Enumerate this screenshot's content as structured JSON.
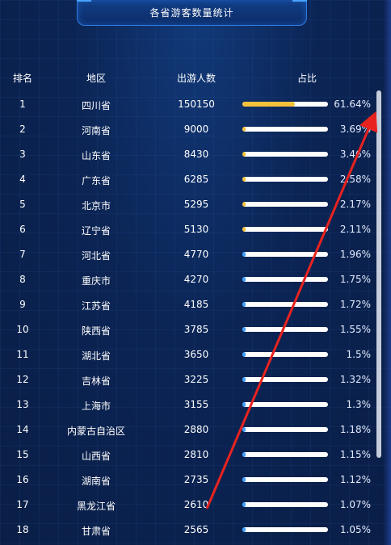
{
  "title": "各省游客数量统计",
  "columns": {
    "rank": "排名",
    "region": "地区",
    "count": "出游人数",
    "share": "占比"
  },
  "colors": {
    "high": "#f6c13a",
    "normal": "#3fa0ff",
    "track": "#ffffff",
    "arrow": "#e8231f"
  },
  "rows": [
    {
      "rank": "1",
      "region": "四川省",
      "count": "150150",
      "pct": "61.64%",
      "ratio": 0.6164,
      "level": "high"
    },
    {
      "rank": "2",
      "region": "河南省",
      "count": "9000",
      "pct": "3.69%",
      "ratio": 0.0369,
      "level": "high"
    },
    {
      "rank": "3",
      "region": "山东省",
      "count": "8430",
      "pct": "3.46%",
      "ratio": 0.0346,
      "level": "high"
    },
    {
      "rank": "4",
      "region": "广东省",
      "count": "6285",
      "pct": "2.58%",
      "ratio": 0.0258,
      "level": "high"
    },
    {
      "rank": "5",
      "region": "北京市",
      "count": "5295",
      "pct": "2.17%",
      "ratio": 0.0217,
      "level": "high"
    },
    {
      "rank": "6",
      "region": "辽宁省",
      "count": "5130",
      "pct": "2.11%",
      "ratio": 0.0211,
      "level": "high"
    },
    {
      "rank": "7",
      "region": "河北省",
      "count": "4770",
      "pct": "1.96%",
      "ratio": 0.0196,
      "level": "normal"
    },
    {
      "rank": "8",
      "region": "重庆市",
      "count": "4270",
      "pct": "1.75%",
      "ratio": 0.0175,
      "level": "normal"
    },
    {
      "rank": "9",
      "region": "江苏省",
      "count": "4185",
      "pct": "1.72%",
      "ratio": 0.0172,
      "level": "normal"
    },
    {
      "rank": "10",
      "region": "陕西省",
      "count": "3785",
      "pct": "1.55%",
      "ratio": 0.0155,
      "level": "normal"
    },
    {
      "rank": "11",
      "region": "湖北省",
      "count": "3650",
      "pct": "1.5%",
      "ratio": 0.015,
      "level": "normal"
    },
    {
      "rank": "12",
      "region": "吉林省",
      "count": "3225",
      "pct": "1.32%",
      "ratio": 0.0132,
      "level": "normal"
    },
    {
      "rank": "13",
      "region": "上海市",
      "count": "3155",
      "pct": "1.3%",
      "ratio": 0.013,
      "level": "normal"
    },
    {
      "rank": "14",
      "region": "内蒙古自治区",
      "count": "2880",
      "pct": "1.18%",
      "ratio": 0.0118,
      "level": "normal"
    },
    {
      "rank": "15",
      "region": "山西省",
      "count": "2810",
      "pct": "1.15%",
      "ratio": 0.0115,
      "level": "normal"
    },
    {
      "rank": "16",
      "region": "湖南省",
      "count": "2735",
      "pct": "1.12%",
      "ratio": 0.0112,
      "level": "normal"
    },
    {
      "rank": "17",
      "region": "黑龙江省",
      "count": "2610",
      "pct": "1.07%",
      "ratio": 0.0107,
      "level": "normal"
    },
    {
      "rank": "18",
      "region": "甘肃省",
      "count": "2565",
      "pct": "1.05%",
      "ratio": 0.0105,
      "level": "normal"
    }
  ]
}
